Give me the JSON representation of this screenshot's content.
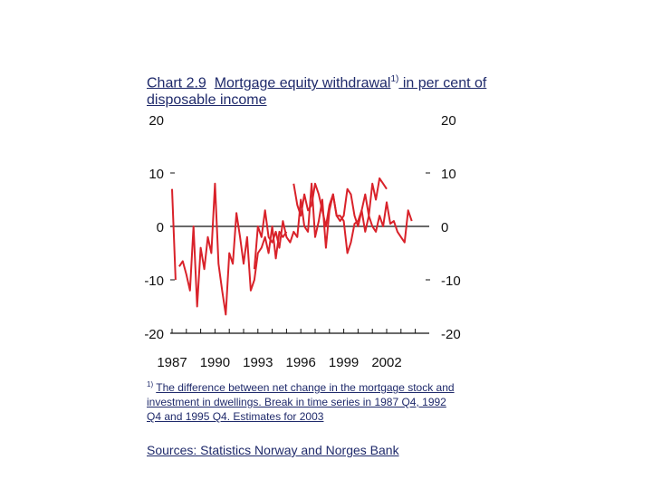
{
  "title": {
    "number": "Chart 2.9",
    "text": "Mortgage equity withdrawal",
    "sup": "1)",
    "rest": " in per cent of disposable income"
  },
  "footnote": {
    "marker": "1)",
    "text": "The difference between net change in the mortgage stock and investment in dwellings. Break in time series in 1987 Q4, 1992 Q4 and 1995 Q4. Estimates for 2003"
  },
  "sources": "Sources: Statistics Norway and Norges Bank",
  "chart_data": {
    "type": "line",
    "x_start": "1987 Q1",
    "frequency": "quarterly",
    "ylim": [
      -20,
      20
    ],
    "yticks": [
      20,
      10,
      0,
      -10,
      -20
    ],
    "ytick_labels": [
      "20",
      "10",
      "0",
      "-10",
      "-20"
    ],
    "xtick_labels": [
      "1987",
      "1990",
      "1993",
      "1996",
      "1999",
      "2002"
    ],
    "grid": false,
    "line_color": "#d9222a",
    "series": [
      {
        "segments": [
          [
            7,
            -10
          ],
          [
            -7.5,
            -6.5,
            -9,
            -12,
            0,
            -15,
            -4,
            -8,
            -2,
            -5,
            8,
            -7,
            -12,
            -16.5,
            -5,
            -7,
            2.5,
            -2,
            -7,
            -2,
            -12,
            -10,
            -5,
            -4,
            -2,
            -5,
            0,
            -6,
            -1,
            -2,
            -1
          ],
          [
            -8,
            0,
            -2,
            3,
            -2,
            -3,
            -1,
            -4,
            1,
            -2,
            -3,
            -1,
            -2,
            5,
            0,
            -1,
            8,
            -2,
            1,
            5,
            -4,
            3,
            6,
            2,
            2,
            1,
            -5,
            -3,
            0.5,
            1,
            3,
            -1,
            2,
            0,
            -1,
            2,
            0,
            4.5,
            0.5,
            1,
            -1,
            -2,
            -3,
            3,
            1
          ],
          [
            8,
            4,
            2,
            6,
            3,
            4,
            8,
            6,
            3,
            0,
            4,
            6,
            2,
            1,
            2,
            7,
            6,
            2,
            0,
            3,
            6,
            2,
            8,
            5,
            9,
            8,
            7
          ]
        ],
        "starts": [
          "1987 Q1",
          "1987 Q3",
          "1992 Q4",
          "1995 Q3"
        ]
      }
    ]
  }
}
